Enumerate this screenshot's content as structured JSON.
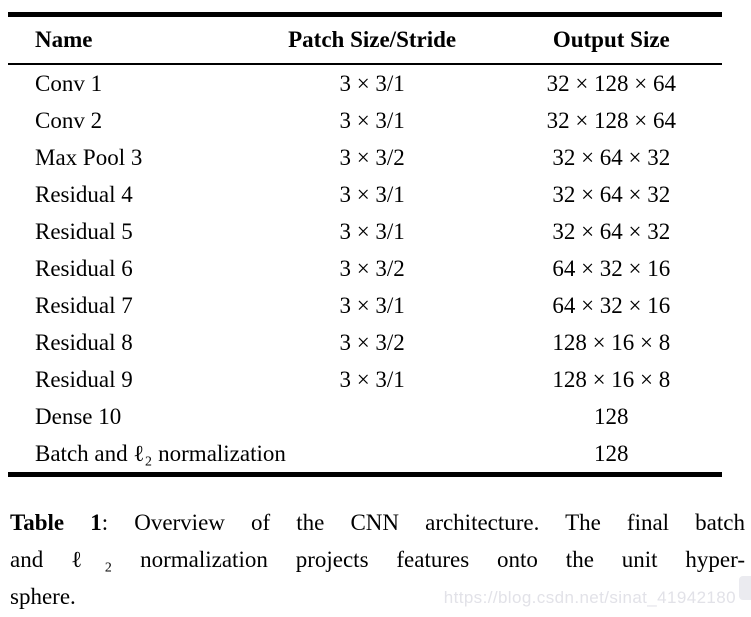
{
  "table": {
    "headers": [
      "Name",
      "Patch Size/Stride",
      "Output Size"
    ],
    "rows": [
      {
        "name": "Conv 1",
        "patch": "3 × 3/1",
        "output": "32 × 128 × 64"
      },
      {
        "name": "Conv 2",
        "patch": "3 × 3/1",
        "output": "32 × 128 × 64"
      },
      {
        "name": "Max Pool 3",
        "patch": "3 × 3/2",
        "output": "32 × 64 × 32"
      },
      {
        "name": "Residual 4",
        "patch": "3 × 3/1",
        "output": "32 × 64 × 32"
      },
      {
        "name": "Residual 5",
        "patch": "3 × 3/1",
        "output": "32 × 64 × 32"
      },
      {
        "name": "Residual 6",
        "patch": "3 × 3/2",
        "output": "64 × 32 × 16"
      },
      {
        "name": "Residual 7",
        "patch": "3 × 3/1",
        "output": "64 × 32 × 16"
      },
      {
        "name": "Residual 8",
        "patch": "3 × 3/2",
        "output": "128 × 16 × 8"
      },
      {
        "name": "Residual 9",
        "patch": "3 × 3/1",
        "output": "128 × 16 × 8"
      },
      {
        "name": "Dense 10",
        "patch": "",
        "output": "128"
      },
      {
        "name": "Batch and ℓ₂ normalization",
        "patch": "",
        "output": "128"
      }
    ]
  },
  "caption": {
    "label": "Table 1",
    "line1_rest": ": Overview of the CNN architecture. The final batch",
    "line2": "and ℓ₂ normalization projects features onto the unit hyper-",
    "line3": "sphere."
  },
  "watermark": "https://blog.csdn.net/sinat_41942180"
}
